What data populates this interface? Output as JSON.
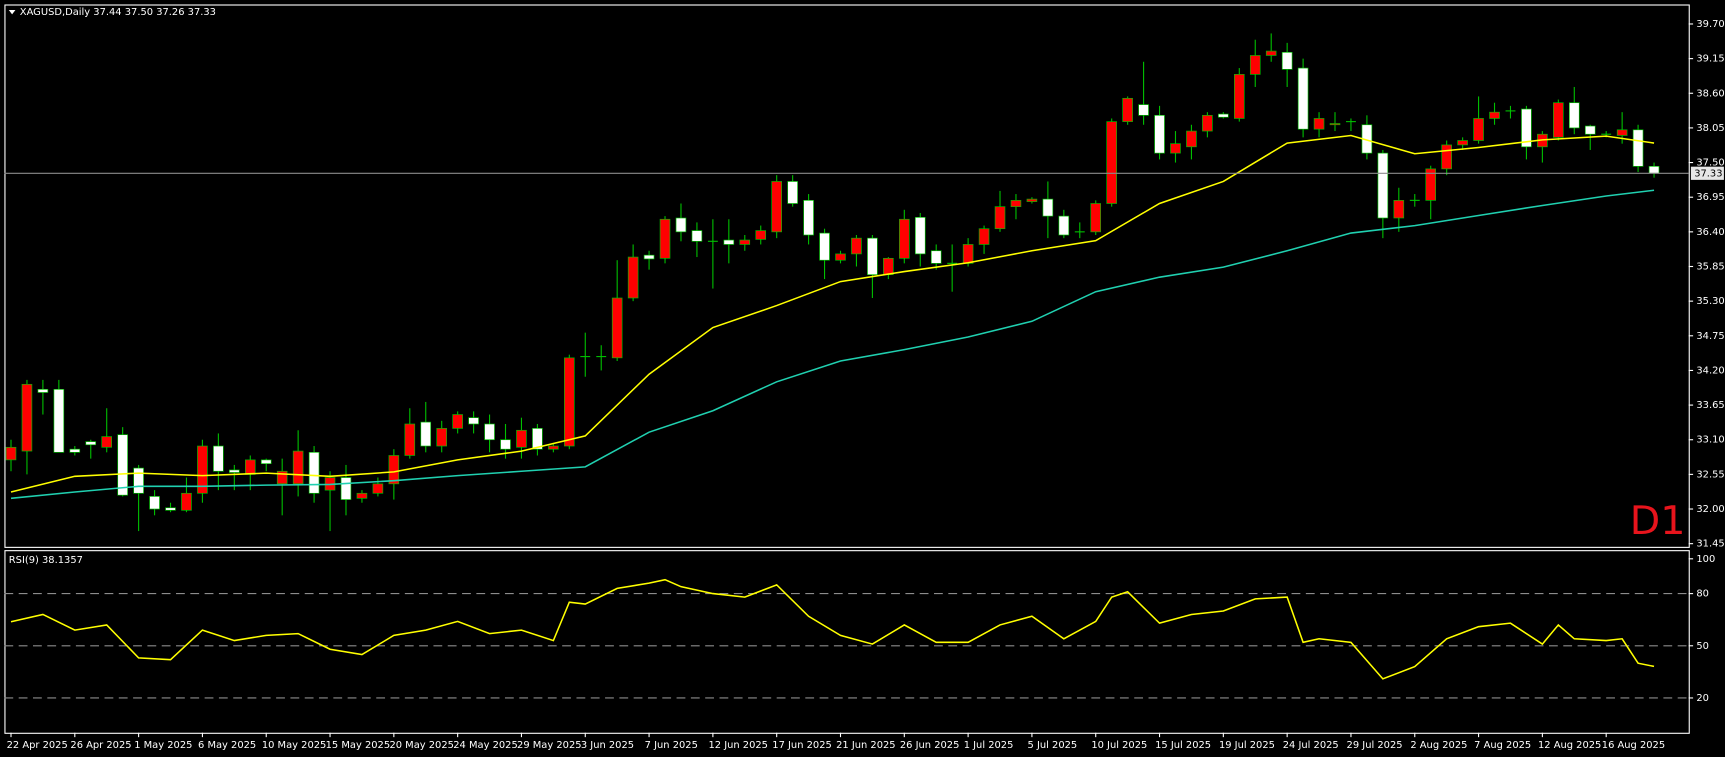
{
  "chart_data": [
    {
      "type": "candlestick",
      "title": "XAGUSD,Daily 37.44 37.50 37.26 37.33",
      "annotation": "D1",
      "categories": [
        "22 Apr 2025",
        null,
        null,
        null,
        "26 Apr 2025",
        null,
        null,
        null,
        "1 May 2025",
        null,
        null,
        null,
        "6 May 2025",
        null,
        null,
        null,
        "10 May 2025",
        null,
        null,
        null,
        "15 May 2025",
        null,
        null,
        null,
        "20 May 2025",
        null,
        null,
        null,
        "24 May 2025",
        null,
        null,
        null,
        "29 May 2025",
        null,
        null,
        null,
        "3 Jun 2025",
        null,
        null,
        null,
        "7 Jun 2025",
        null,
        null,
        null,
        "12 Jun 2025",
        null,
        null,
        null,
        "17 Jun 2025",
        null,
        null,
        null,
        "21 Jun 2025",
        null,
        null,
        null,
        "26 Jun 2025",
        null,
        null,
        null,
        "1 Jul 2025",
        null,
        null,
        null,
        "5 Jul 2025",
        null,
        null,
        null,
        "10 Jul 2025",
        null,
        null,
        null,
        "15 Jul 2025",
        null,
        null,
        null,
        "19 Jul 2025",
        null,
        null,
        null,
        "24 Jul 2025",
        null,
        null,
        null,
        "29 Jul 2025",
        null,
        null,
        null,
        "2 Aug 2025",
        null,
        null,
        null,
        "7 Aug 2025",
        null,
        null,
        null,
        "12 Aug 2025",
        null,
        null,
        null,
        "16 Aug 2025",
        null,
        null,
        null
      ],
      "open": [
        32.78,
        32.92,
        33.9,
        33.9,
        32.95,
        33.07,
        32.98,
        33.18,
        32.65,
        32.2,
        32.02,
        31.98,
        32.25,
        33.0,
        32.62,
        32.55,
        32.78,
        32.4,
        32.4,
        32.9,
        32.3,
        32.5,
        32.17,
        32.25,
        32.4,
        32.85,
        33.38,
        33.0,
        33.28,
        33.45,
        33.35,
        33.1,
        32.98,
        33.28,
        32.95,
        33.0,
        34.42,
        34.42,
        34.4,
        35.35,
        36.03,
        35.98,
        36.62,
        36.42,
        36.25,
        36.27,
        36.2,
        36.28,
        36.4,
        37.2,
        36.9,
        36.38,
        35.95,
        36.05,
        36.3,
        35.72,
        35.98,
        36.63,
        36.1,
        35.9,
        35.9,
        36.2,
        36.45,
        36.8,
        36.88,
        36.92,
        36.65,
        36.4,
        36.4,
        36.85,
        38.15,
        38.42,
        38.25,
        37.65,
        37.75,
        38.0,
        38.27,
        38.2,
        38.9,
        39.2,
        39.25,
        39.0,
        38.03,
        38.1,
        38.15,
        38.1,
        37.65,
        36.62,
        36.9,
        36.9,
        37.4,
        37.78,
        37.85,
        38.2,
        38.32,
        38.35,
        37.75,
        37.9,
        38.45,
        38.08,
        37.95,
        37.93,
        38.02,
        37.44
      ],
      "high": [
        33.1,
        34.05,
        34.05,
        34.05,
        33.0,
        33.1,
        33.6,
        33.3,
        32.7,
        32.3,
        32.1,
        32.5,
        33.1,
        33.2,
        32.7,
        32.85,
        32.8,
        32.8,
        33.25,
        33.0,
        32.6,
        32.7,
        32.3,
        32.5,
        32.95,
        33.6,
        33.7,
        33.4,
        33.55,
        33.55,
        33.5,
        33.35,
        33.45,
        33.35,
        33.05,
        34.45,
        34.8,
        34.6,
        35.95,
        36.2,
        36.1,
        36.65,
        36.85,
        36.55,
        36.6,
        36.6,
        36.35,
        36.5,
        37.3,
        37.3,
        37.0,
        36.45,
        36.1,
        36.35,
        36.35,
        36.0,
        36.75,
        36.7,
        36.2,
        36.2,
        36.3,
        36.5,
        37.05,
        37.0,
        36.95,
        37.2,
        36.75,
        36.55,
        36.9,
        38.2,
        38.55,
        39.1,
        38.4,
        38.0,
        38.1,
        38.3,
        38.3,
        39.0,
        39.45,
        39.55,
        39.4,
        39.15,
        38.3,
        38.3,
        38.2,
        38.25,
        37.7,
        37.1,
        37.0,
        37.45,
        37.85,
        37.9,
        38.55,
        38.45,
        38.4,
        38.4,
        38.0,
        38.5,
        38.7,
        38.1,
        38.0,
        38.3,
        38.1,
        37.5
      ],
      "low": [
        32.6,
        32.55,
        33.5,
        32.9,
        32.85,
        32.8,
        32.9,
        32.2,
        31.65,
        31.9,
        31.95,
        31.95,
        32.1,
        32.3,
        32.3,
        32.3,
        32.6,
        31.9,
        32.2,
        32.1,
        31.65,
        31.9,
        32.1,
        32.2,
        32.15,
        32.8,
        32.9,
        32.9,
        33.2,
        33.2,
        32.9,
        32.8,
        32.8,
        32.85,
        32.9,
        32.95,
        34.1,
        34.2,
        34.35,
        35.3,
        35.8,
        35.9,
        36.25,
        36.0,
        35.5,
        35.9,
        36.1,
        36.2,
        36.3,
        36.8,
        36.2,
        35.65,
        35.9,
        35.85,
        35.35,
        35.65,
        35.9,
        35.85,
        35.8,
        35.45,
        35.85,
        36.05,
        36.4,
        36.6,
        36.85,
        36.3,
        36.3,
        36.3,
        36.35,
        36.8,
        38.1,
        38.1,
        37.55,
        37.5,
        37.55,
        37.9,
        38.2,
        38.15,
        38.7,
        39.1,
        38.7,
        37.9,
        37.9,
        38.0,
        38.0,
        37.55,
        36.3,
        36.4,
        36.8,
        36.6,
        37.3,
        37.7,
        37.8,
        38.1,
        38.2,
        37.55,
        37.5,
        37.85,
        37.95,
        37.7,
        37.9,
        37.8,
        37.35,
        37.26
      ],
      "close": [
        32.98,
        33.98,
        33.85,
        32.9,
        32.9,
        33.02,
        33.15,
        32.22,
        32.25,
        32.0,
        31.98,
        32.25,
        33.0,
        32.6,
        32.58,
        32.78,
        32.72,
        32.6,
        32.92,
        32.25,
        32.5,
        32.15,
        32.25,
        32.4,
        32.85,
        33.35,
        33.0,
        33.28,
        33.5,
        33.35,
        33.1,
        32.95,
        33.25,
        32.95,
        33.0,
        34.4,
        34.42,
        34.42,
        35.35,
        36.0,
        35.97,
        36.6,
        36.4,
        36.25,
        36.25,
        36.2,
        36.27,
        36.42,
        37.2,
        36.85,
        36.35,
        35.95,
        36.05,
        36.3,
        35.72,
        35.98,
        36.6,
        36.05,
        35.9,
        35.9,
        36.2,
        36.45,
        36.8,
        36.9,
        36.92,
        36.65,
        36.35,
        36.4,
        36.85,
        38.15,
        38.52,
        38.25,
        37.65,
        37.8,
        38.0,
        38.25,
        38.22,
        38.9,
        39.2,
        39.27,
        38.98,
        38.03,
        38.2,
        38.12,
        38.15,
        37.65,
        36.62,
        36.9,
        36.9,
        37.4,
        37.78,
        37.85,
        38.2,
        38.3,
        38.32,
        37.75,
        37.95,
        38.45,
        38.05,
        37.95,
        37.95,
        38.02,
        37.44,
        37.33
      ],
      "up_color": "#ff0000",
      "down_color": "#ffffff",
      "wick_color": "#00c000",
      "series": [
        {
          "color": "#ffff00",
          "x": [
            0,
            4,
            8,
            12,
            16,
            20,
            24,
            28,
            32,
            36,
            40,
            44,
            48,
            52,
            56,
            60,
            64,
            68,
            72,
            76,
            80,
            84,
            88,
            92,
            96,
            100,
            103
          ],
          "values": [
            32.27,
            32.52,
            32.57,
            32.53,
            32.57,
            32.52,
            32.59,
            32.78,
            32.92,
            33.16,
            34.14,
            34.88,
            35.23,
            35.61,
            35.77,
            35.91,
            36.1,
            36.26,
            36.85,
            37.2,
            37.81,
            37.93,
            37.64,
            37.74,
            37.86,
            37.92,
            37.81
          ]
        },
        {
          "color": "#20d0b0",
          "x": [
            0,
            4,
            8,
            12,
            16,
            20,
            24,
            28,
            32,
            36,
            40,
            44,
            48,
            52,
            56,
            60,
            64,
            68,
            72,
            76,
            80,
            84,
            88,
            92,
            96,
            100,
            103
          ],
          "values": [
            32.17,
            32.27,
            32.36,
            32.36,
            32.38,
            32.39,
            32.45,
            32.53,
            32.6,
            32.67,
            33.22,
            33.56,
            34.02,
            34.35,
            34.53,
            34.73,
            34.98,
            35.45,
            35.68,
            35.84,
            36.1,
            36.38,
            36.5,
            36.66,
            36.82,
            36.97,
            37.06
          ]
        }
      ],
      "last_price_color": "#8c8c8c",
      "ylim": [
        31.4,
        39.94
      ],
      "yticks": [
        {
          "value": 39.7,
          "label": "39.70"
        },
        39.15,
        {
          "value": 38.6,
          "label": "38.60"
        },
        38.05,
        {
          "value": 37.5,
          "label": "37.50"
        },
        36.95,
        {
          "value": 36.4,
          "label": "36.40"
        },
        35.85,
        {
          "value": 35.3,
          "label": "35.30"
        },
        34.75,
        {
          "value": 34.2,
          "label": "34.20"
        },
        33.65,
        {
          "value": 33.1,
          "label": "33.10"
        },
        32.55,
        {
          "value": 32.0,
          "label": "32.00"
        },
        31.45
      ]
    },
    {
      "type": "line",
      "title": "RSI(9) 38.1357",
      "series": [
        {
          "color": "#ffff00",
          "x": [
            0,
            2,
            4,
            6,
            8,
            10,
            12,
            14,
            16,
            18,
            20,
            22,
            24,
            26,
            28,
            30,
            32,
            34,
            35,
            36,
            38,
            40,
            41,
            42,
            44,
            46,
            48,
            50,
            52,
            54,
            56,
            58,
            60,
            62,
            64,
            66,
            68,
            69,
            70,
            72,
            74,
            76,
            78,
            80,
            81,
            82,
            84,
            86,
            88,
            90,
            92,
            94,
            96,
            97,
            98,
            100,
            101,
            102,
            103
          ],
          "values": [
            63.8,
            68,
            59,
            62,
            43,
            42,
            59,
            53,
            56,
            57,
            48,
            45,
            56,
            59,
            64,
            57,
            59,
            53,
            75,
            74,
            83,
            86,
            88,
            84,
            80,
            78,
            85,
            67,
            56,
            51,
            62,
            52,
            52,
            62,
            67,
            54,
            64,
            78,
            81,
            63,
            68,
            70,
            77,
            78,
            52,
            54,
            52,
            31,
            38,
            54,
            61,
            63,
            51,
            62,
            54,
            53,
            54,
            40,
            38.1357
          ]
        }
      ],
      "ylim": [
        0,
        105
      ],
      "yticks": [
        20,
        50,
        80,
        100
      ],
      "levels": [
        20,
        50,
        80
      ],
      "level_color": "#8c8c8c"
    }
  ]
}
